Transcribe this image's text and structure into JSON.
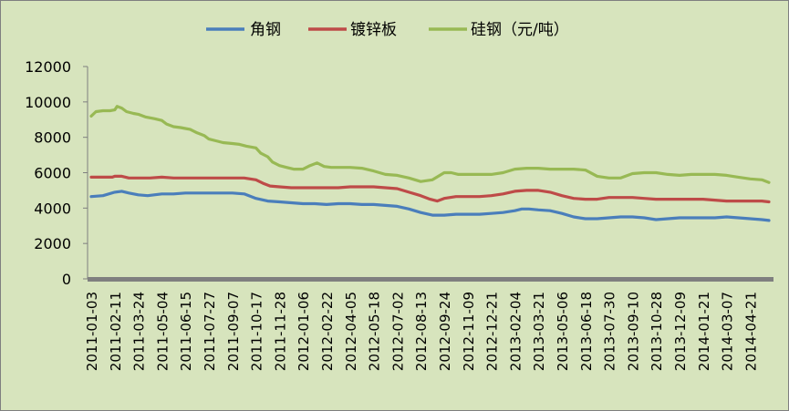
{
  "chart_data": {
    "type": "line",
    "title": "",
    "xlabel": "",
    "ylabel": "",
    "ylim": [
      0,
      12000
    ],
    "yticks": [
      0,
      2000,
      4000,
      6000,
      8000,
      10000,
      12000
    ],
    "grid": false,
    "legend_position": "top",
    "x_tick_labels": [
      "2011-01-03",
      "2011-02-11",
      "2011-03-24",
      "2011-05-04",
      "2011-06-15",
      "2011-07-27",
      "2011-09-07",
      "2011-10-17",
      "2011-11-28",
      "2012-01-06",
      "2012-02-22",
      "2012-04-05",
      "2012-05-18",
      "2012-07-02",
      "2012-08-13",
      "2012-09-24",
      "2012-11-09",
      "2012-12-21",
      "2013-02-04",
      "2013-03-21",
      "2013-05-06",
      "2013-06-18",
      "2013-07-30",
      "2013-09-10",
      "2013-10-28",
      "2013-12-09",
      "2014-01-21",
      "2014-03-07",
      "2014-04-21"
    ],
    "series": [
      {
        "name": "角钢",
        "color": "#4a7ebb",
        "points": [
          [
            0,
            4650
          ],
          [
            0.5,
            4700
          ],
          [
            1,
            4900
          ],
          [
            1.3,
            4950
          ],
          [
            1.6,
            4850
          ],
          [
            2,
            4750
          ],
          [
            2.4,
            4700
          ],
          [
            3,
            4800
          ],
          [
            3.5,
            4800
          ],
          [
            4,
            4850
          ],
          [
            4.5,
            4850
          ],
          [
            5,
            4850
          ],
          [
            5.5,
            4850
          ],
          [
            6,
            4850
          ],
          [
            6.5,
            4800
          ],
          [
            7,
            4550
          ],
          [
            7.5,
            4400
          ],
          [
            8,
            4350
          ],
          [
            8.5,
            4300
          ],
          [
            9,
            4250
          ],
          [
            9.5,
            4250
          ],
          [
            10,
            4200
          ],
          [
            10.5,
            4250
          ],
          [
            11,
            4250
          ],
          [
            11.5,
            4200
          ],
          [
            12,
            4200
          ],
          [
            12.5,
            4150
          ],
          [
            13,
            4100
          ],
          [
            13.5,
            3950
          ],
          [
            14,
            3750
          ],
          [
            14.5,
            3600
          ],
          [
            15,
            3600
          ],
          [
            15.5,
            3650
          ],
          [
            16,
            3650
          ],
          [
            16.5,
            3650
          ],
          [
            17,
            3700
          ],
          [
            17.5,
            3750
          ],
          [
            18,
            3850
          ],
          [
            18.3,
            3950
          ],
          [
            18.6,
            3950
          ],
          [
            19,
            3900
          ],
          [
            19.5,
            3850
          ],
          [
            20,
            3700
          ],
          [
            20.5,
            3500
          ],
          [
            21,
            3400
          ],
          [
            21.5,
            3400
          ],
          [
            22,
            3450
          ],
          [
            22.5,
            3500
          ],
          [
            23,
            3500
          ],
          [
            23.5,
            3450
          ],
          [
            24,
            3350
          ],
          [
            24.5,
            3400
          ],
          [
            25,
            3450
          ],
          [
            25.5,
            3450
          ],
          [
            26,
            3450
          ],
          [
            26.5,
            3450
          ],
          [
            27,
            3500
          ],
          [
            27.5,
            3450
          ],
          [
            28,
            3400
          ],
          [
            28.5,
            3350
          ],
          [
            28.8,
            3300
          ]
        ]
      },
      {
        "name": "镀锌板",
        "color": "#be4b48",
        "points": [
          [
            0,
            5750
          ],
          [
            0.5,
            5750
          ],
          [
            0.9,
            5750
          ],
          [
            1,
            5800
          ],
          [
            1.3,
            5800
          ],
          [
            1.6,
            5700
          ],
          [
            2,
            5700
          ],
          [
            2.5,
            5700
          ],
          [
            3,
            5750
          ],
          [
            3.5,
            5700
          ],
          [
            4,
            5700
          ],
          [
            4.5,
            5700
          ],
          [
            5,
            5700
          ],
          [
            5.5,
            5700
          ],
          [
            6,
            5700
          ],
          [
            6.5,
            5700
          ],
          [
            7,
            5600
          ],
          [
            7.3,
            5400
          ],
          [
            7.6,
            5250
          ],
          [
            8,
            5200
          ],
          [
            8.5,
            5150
          ],
          [
            9,
            5150
          ],
          [
            9.5,
            5150
          ],
          [
            10,
            5150
          ],
          [
            10.5,
            5150
          ],
          [
            11,
            5200
          ],
          [
            11.5,
            5200
          ],
          [
            12,
            5200
          ],
          [
            12.5,
            5150
          ],
          [
            13,
            5100
          ],
          [
            13.5,
            4900
          ],
          [
            14,
            4700
          ],
          [
            14.4,
            4500
          ],
          [
            14.7,
            4400
          ],
          [
            15,
            4550
          ],
          [
            15.5,
            4650
          ],
          [
            16,
            4650
          ],
          [
            16.5,
            4650
          ],
          [
            17,
            4700
          ],
          [
            17.5,
            4800
          ],
          [
            18,
            4950
          ],
          [
            18.5,
            5000
          ],
          [
            19,
            5000
          ],
          [
            19.5,
            4900
          ],
          [
            20,
            4700
          ],
          [
            20.5,
            4550
          ],
          [
            21,
            4500
          ],
          [
            21.5,
            4500
          ],
          [
            22,
            4600
          ],
          [
            22.5,
            4600
          ],
          [
            23,
            4600
          ],
          [
            23.5,
            4550
          ],
          [
            24,
            4500
          ],
          [
            24.5,
            4500
          ],
          [
            25,
            4500
          ],
          [
            25.5,
            4500
          ],
          [
            26,
            4500
          ],
          [
            26.5,
            4450
          ],
          [
            27,
            4400
          ],
          [
            27.5,
            4400
          ],
          [
            28,
            4400
          ],
          [
            28.5,
            4400
          ],
          [
            28.8,
            4350
          ]
        ]
      },
      {
        "name": "硅钢（元/吨）",
        "color": "#98b954",
        "points": [
          [
            0,
            9200
          ],
          [
            0.2,
            9450
          ],
          [
            0.5,
            9500
          ],
          [
            0.8,
            9500
          ],
          [
            1,
            9550
          ],
          [
            1.1,
            9750
          ],
          [
            1.3,
            9650
          ],
          [
            1.5,
            9450
          ],
          [
            1.8,
            9350
          ],
          [
            2,
            9300
          ],
          [
            2.3,
            9150
          ],
          [
            2.7,
            9050
          ],
          [
            3,
            8950
          ],
          [
            3.2,
            8750
          ],
          [
            3.5,
            8600
          ],
          [
            3.8,
            8550
          ],
          [
            4,
            8500
          ],
          [
            4.2,
            8450
          ],
          [
            4.5,
            8250
          ],
          [
            4.8,
            8100
          ],
          [
            5,
            7900
          ],
          [
            5.3,
            7800
          ],
          [
            5.6,
            7700
          ],
          [
            6,
            7650
          ],
          [
            6.3,
            7600
          ],
          [
            6.6,
            7500
          ],
          [
            7,
            7400
          ],
          [
            7.2,
            7100
          ],
          [
            7.5,
            6900
          ],
          [
            7.7,
            6600
          ],
          [
            8,
            6400
          ],
          [
            8.3,
            6300
          ],
          [
            8.6,
            6200
          ],
          [
            9,
            6200
          ],
          [
            9.3,
            6400
          ],
          [
            9.6,
            6550
          ],
          [
            9.9,
            6350
          ],
          [
            10.2,
            6300
          ],
          [
            10.5,
            6300
          ],
          [
            11,
            6300
          ],
          [
            11.5,
            6250
          ],
          [
            12,
            6100
          ],
          [
            12.5,
            5900
          ],
          [
            13,
            5850
          ],
          [
            13.5,
            5700
          ],
          [
            14,
            5500
          ],
          [
            14.5,
            5600
          ],
          [
            15,
            6000
          ],
          [
            15.3,
            6000
          ],
          [
            15.6,
            5900
          ],
          [
            16,
            5900
          ],
          [
            16.5,
            5900
          ],
          [
            17,
            5900
          ],
          [
            17.5,
            6000
          ],
          [
            18,
            6200
          ],
          [
            18.5,
            6250
          ],
          [
            19,
            6250
          ],
          [
            19.5,
            6200
          ],
          [
            20,
            6200
          ],
          [
            20.5,
            6200
          ],
          [
            21,
            6150
          ],
          [
            21.5,
            5800
          ],
          [
            22,
            5700
          ],
          [
            22.5,
            5700
          ],
          [
            23,
            5950
          ],
          [
            23.5,
            6000
          ],
          [
            24,
            6000
          ],
          [
            24.5,
            5900
          ],
          [
            25,
            5850
          ],
          [
            25.5,
            5900
          ],
          [
            26,
            5900
          ],
          [
            26.5,
            5900
          ],
          [
            27,
            5850
          ],
          [
            27.5,
            5750
          ],
          [
            28,
            5650
          ],
          [
            28.5,
            5600
          ],
          [
            28.8,
            5450
          ]
        ]
      }
    ]
  }
}
